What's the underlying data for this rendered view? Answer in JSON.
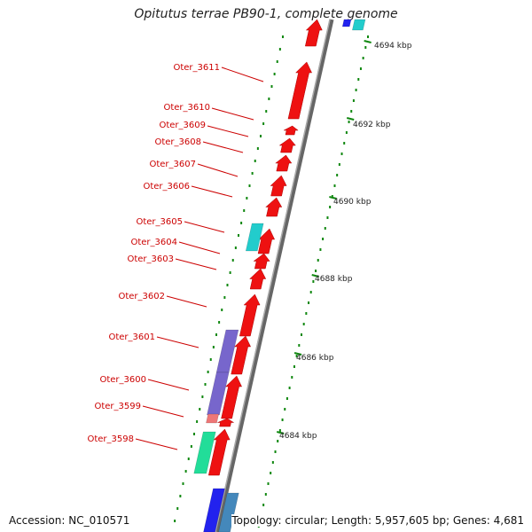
{
  "title": "Opitutus terrae PB90-1, complete genome",
  "accession": "Accession: NC_010571",
  "summary": "Topology: circular; Length: 5,957,605 bp; Genes: 4,681",
  "colors": {
    "forward_cds": "#ee1111",
    "reverse_cds": "#7766cc",
    "cyan_feature": "#22cccc",
    "green_feature": "#22dd99",
    "blue_feature": "#2222ee",
    "steel_feature": "#4488bb",
    "label_text": "#cc0000",
    "backbone": "#888888",
    "scale_ticks": "#118811"
  },
  "scale_labels": [
    "4694 kbp",
    "4692 kbp",
    "4690 kbp",
    "4688 kbp",
    "4686 kbp",
    "4684 kbp"
  ],
  "genes": [
    {
      "label": "Oter_3611"
    },
    {
      "label": "Oter_3610"
    },
    {
      "label": "Oter_3609"
    },
    {
      "label": "Oter_3608"
    },
    {
      "label": "Oter_3607"
    },
    {
      "label": "Oter_3606"
    },
    {
      "label": "Oter_3605"
    },
    {
      "label": "Oter_3604"
    },
    {
      "label": "Oter_3603"
    },
    {
      "label": "Oter_3602"
    },
    {
      "label": "Oter_3601"
    },
    {
      "label": "Oter_3600"
    },
    {
      "label": "Oter_3599"
    },
    {
      "label": "Oter_3598"
    }
  ]
}
